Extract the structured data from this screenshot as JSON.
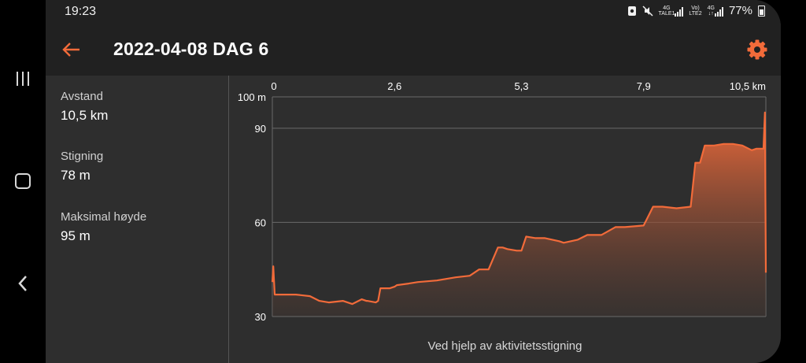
{
  "statusbar": {
    "time": "19:23",
    "battery": "77%",
    "icons": [
      "screenshot-icon",
      "mute-icon",
      "4g-signal-icon",
      "volte-signal-icon",
      "4g-data-icon",
      "battery-icon"
    ],
    "sim1_tag_top": "4G",
    "sim1_tag_bottom": "TALE1",
    "sim2_tag_top": "Vo)",
    "sim2_tag_bottom": "LTE2",
    "data_tag": "4G"
  },
  "appbar": {
    "title": "2022-04-08 DAG 6",
    "accent": "#f26b3a"
  },
  "stats": [
    {
      "label": "Avstand",
      "value": "10,5 km"
    },
    {
      "label": "Stigning",
      "value": "78 m"
    },
    {
      "label": "Maksimal høyde",
      "value": "95 m"
    }
  ],
  "chart_data": {
    "type": "area",
    "title": "",
    "xlabel": "",
    "ylabel": "",
    "x_unit": "km",
    "y_unit": "m",
    "xlim": [
      0,
      10.5
    ],
    "ylim": [
      30,
      100
    ],
    "x_ticks": [
      "0",
      "2,6",
      "5,3",
      "7,9",
      "10,5 km"
    ],
    "y_ticks": [
      "100 m",
      "90",
      "60",
      "30"
    ],
    "y_tick_values": [
      100,
      90,
      60,
      30
    ],
    "x_tick_values": [
      0,
      2.6,
      5.3,
      7.9,
      10.5
    ],
    "grid": true,
    "color": "#f26b3a",
    "series": [
      {
        "x": [
          0,
          0.02,
          0.05,
          0.08,
          0.3,
          0.5,
          0.8,
          1.0,
          1.2,
          1.5,
          1.7,
          1.9,
          2.0,
          2.02,
          2.2,
          2.25,
          2.3,
          2.5,
          2.6,
          2.65,
          2.9,
          3.1,
          3.5,
          3.7,
          3.9,
          4.2,
          4.4,
          4.6,
          4.8,
          4.9,
          5.0,
          5.2,
          5.3,
          5.4,
          5.6,
          5.8,
          6.1,
          6.2,
          6.5,
          6.7,
          7.0,
          7.3,
          7.5,
          7.9,
          8.0,
          8.1,
          8.3,
          8.6,
          8.9,
          9.0,
          9.1,
          9.2,
          9.4,
          9.6,
          9.8,
          10.0,
          10.2,
          10.3,
          10.45,
          10.48,
          10.5
        ],
        "y": [
          41,
          46,
          37,
          37,
          37,
          37,
          36.5,
          35,
          34.5,
          35,
          34,
          35.5,
          35,
          35,
          34.5,
          35,
          39,
          39,
          39.5,
          40,
          40.5,
          41,
          41.5,
          42,
          42.5,
          43,
          45,
          45,
          52,
          52,
          51.5,
          51,
          51,
          55.5,
          55,
          55,
          54,
          53.5,
          54.5,
          56,
          56,
          58.5,
          58.5,
          59,
          62,
          65,
          65,
          64.5,
          65,
          79,
          79,
          84.5,
          84.5,
          85,
          85,
          84.5,
          83,
          83.5,
          83.5,
          95,
          44
        ]
      }
    ]
  },
  "caption": "Ved hjelp av aktivitetsstigning"
}
